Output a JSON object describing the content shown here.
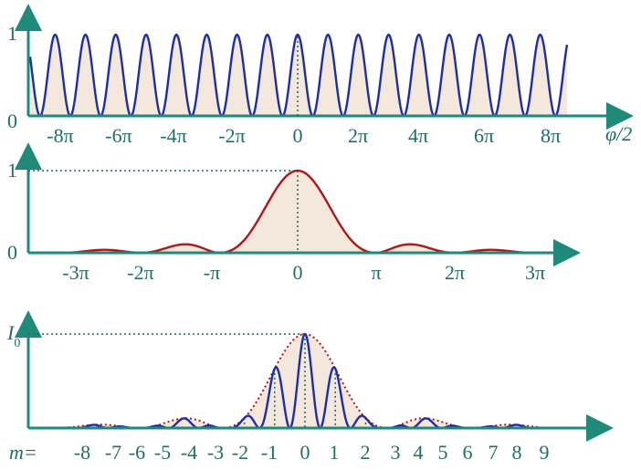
{
  "colors": {
    "axis": "#1f8a7a",
    "text": "#1f6f63",
    "blue": "#1c2fa8",
    "red": "#b01818",
    "fill": "#f4e8dc",
    "guide": "#1a6b5b"
  },
  "panel1": {
    "y_top": "1",
    "y_zero": "0",
    "x_ticks": [
      "-8π",
      "-6π",
      "-4π",
      "-2π",
      "0",
      "2π",
      "4π",
      "6π",
      "8π"
    ],
    "x_axis_label": "φ/2"
  },
  "panel2": {
    "y_top": "1",
    "y_zero": "0",
    "x_ticks": [
      "-3π",
      "-2π",
      "-π",
      "0",
      "π",
      "2π",
      "3π"
    ]
  },
  "panel3": {
    "y_label": "I",
    "y_label_sub": "0",
    "m_prefix": "m=",
    "m_ticks": [
      "-8",
      "-7",
      "-6",
      "-5",
      "-4",
      "-3",
      "-2",
      "-1",
      "0",
      "1",
      "2",
      "3",
      "4",
      "5",
      "6",
      "7",
      "8",
      "9"
    ]
  }
}
